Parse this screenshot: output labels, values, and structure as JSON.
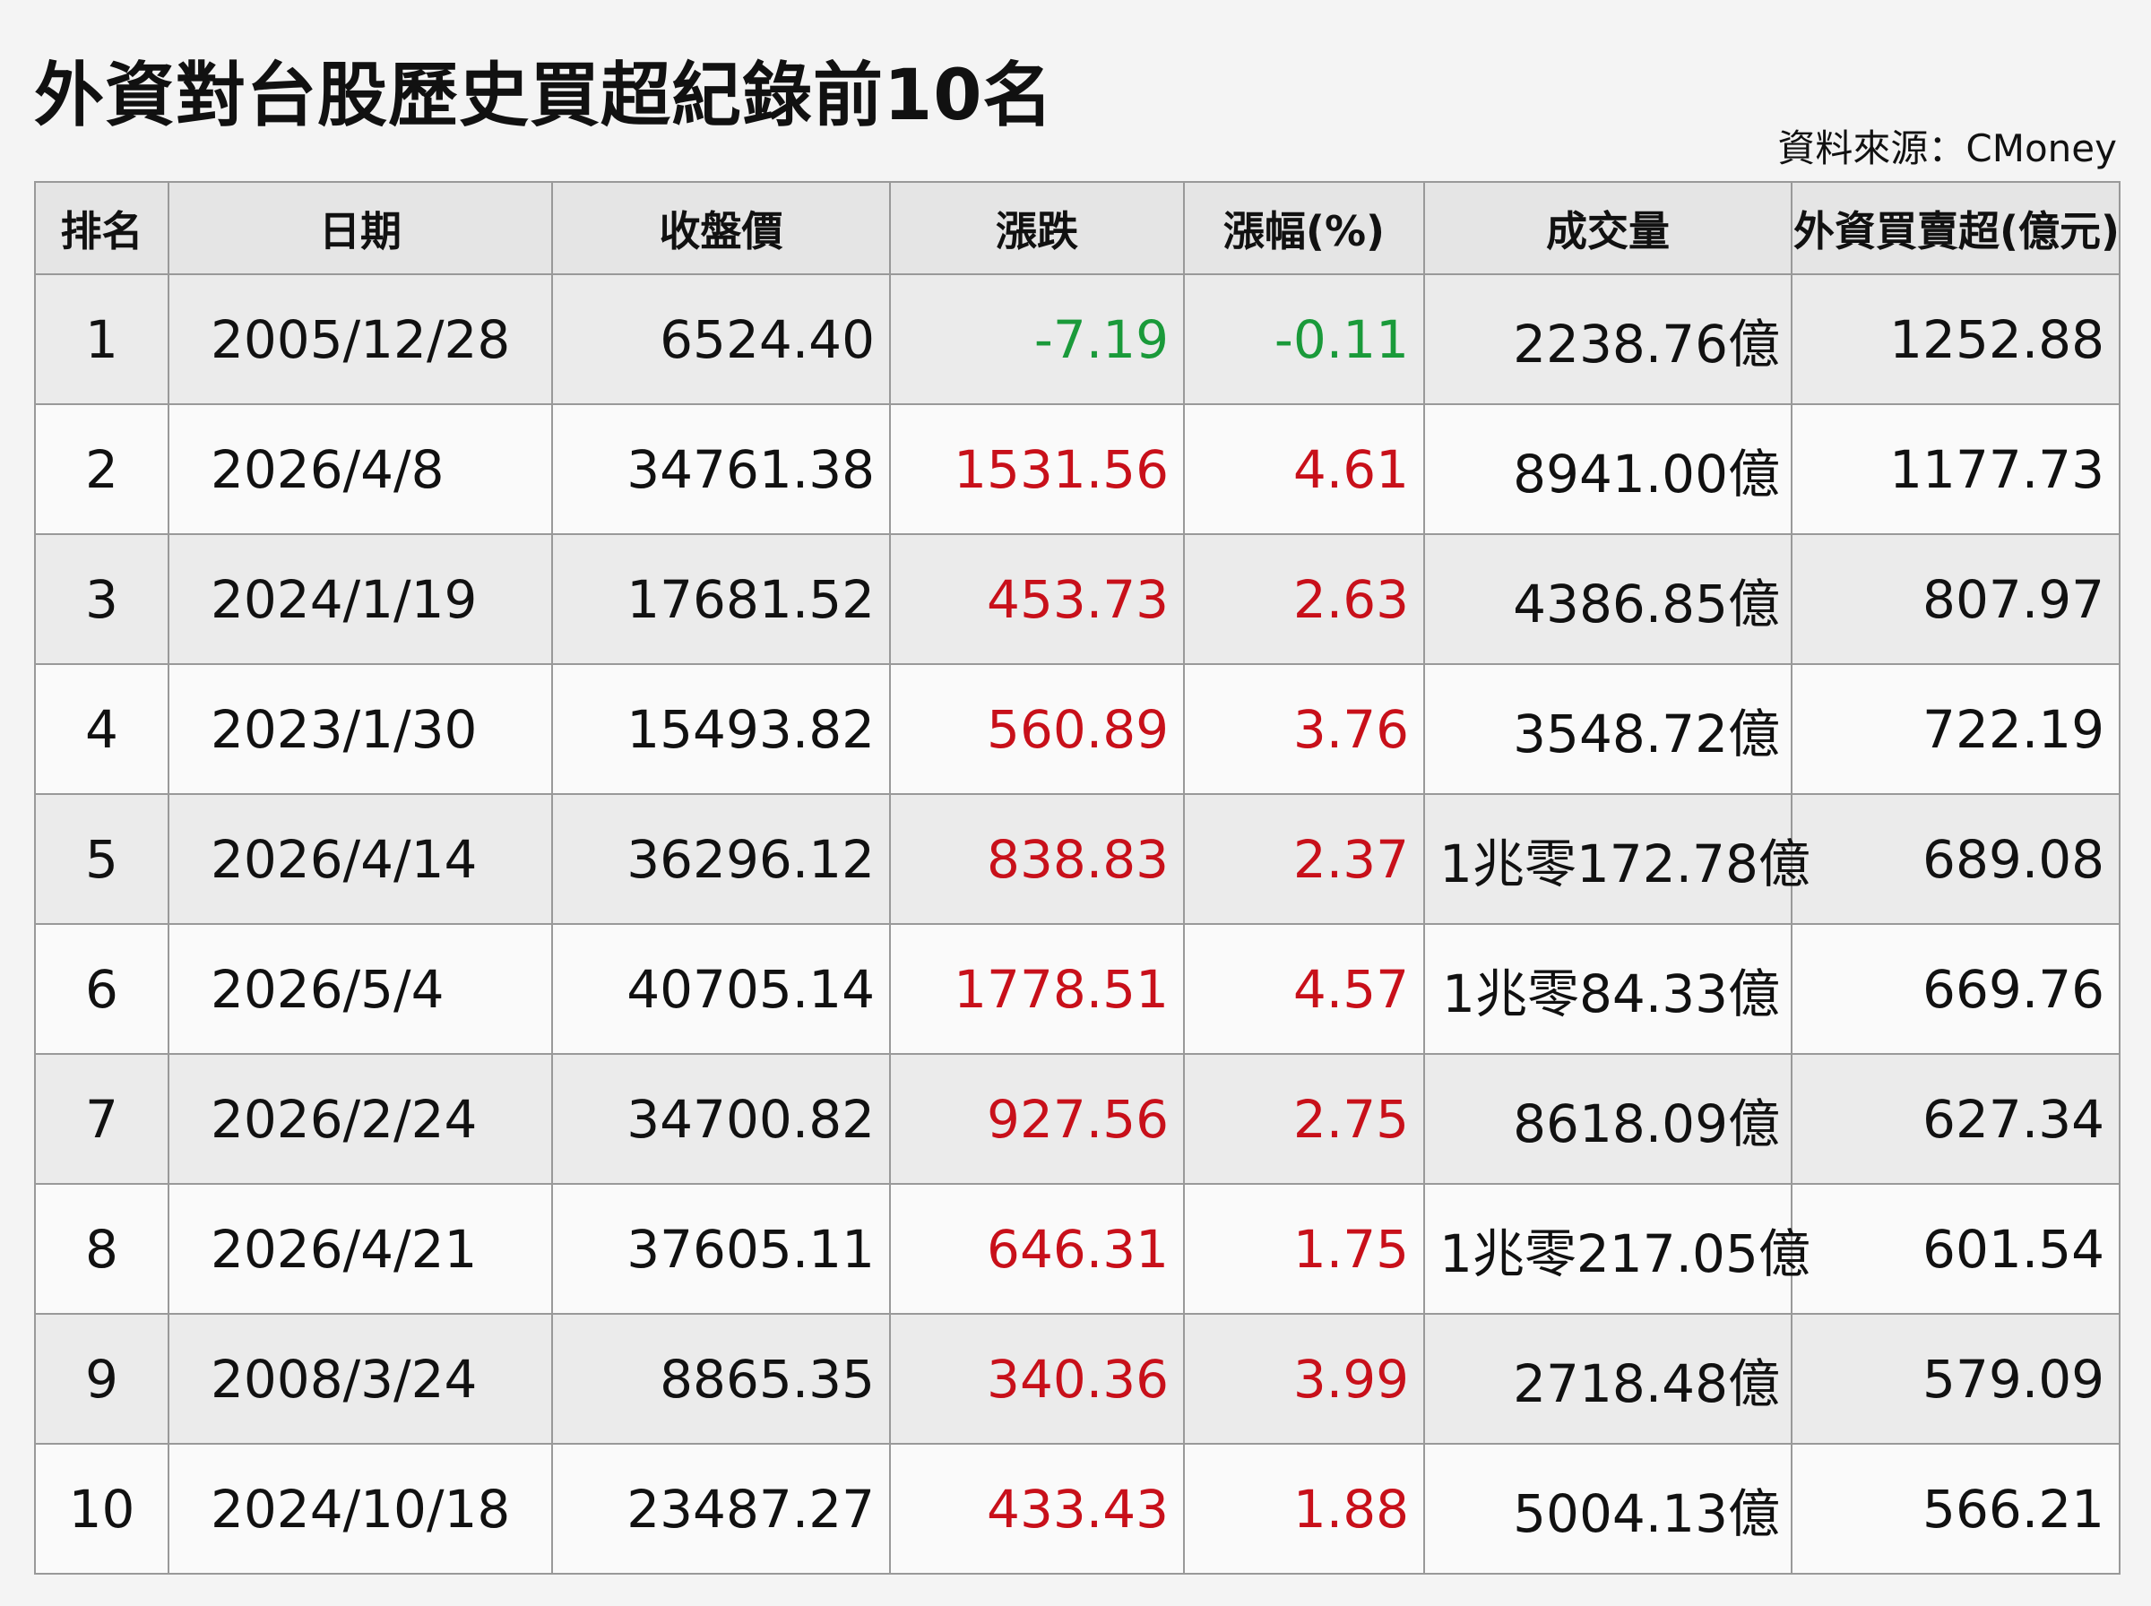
{
  "header": {
    "title": "外資對台股歷史買超紀錄前10名",
    "source": "資料來源：CMoney"
  },
  "table": {
    "columns": [
      "排名",
      "日期",
      "收盤價",
      "漲跌",
      "漲幅(%)",
      "成交量",
      "外資買賣超(億元)"
    ],
    "rows": [
      [
        "1",
        "2005/12/28",
        "6524.40",
        "-7.19",
        "-0.11",
        "2238.76億",
        "1252.88"
      ],
      [
        "2",
        "2026/4/8",
        "34761.38",
        "1531.56",
        "4.61",
        "8941.00億",
        "1177.73"
      ],
      [
        "3",
        "2024/1/19",
        "17681.52",
        "453.73",
        "2.63",
        "4386.85億",
        "807.97"
      ],
      [
        "4",
        "2023/1/30",
        "15493.82",
        "560.89",
        "3.76",
        "3548.72億",
        "722.19"
      ],
      [
        "5",
        "2026/4/14",
        "36296.12",
        "838.83",
        "2.37",
        "1兆零172.78億",
        "689.08"
      ],
      [
        "6",
        "2026/5/4",
        "40705.14",
        "1778.51",
        "4.57",
        "1兆零84.33億",
        "669.76"
      ],
      [
        "7",
        "2026/2/24",
        "34700.82",
        "927.56",
        "2.75",
        "8618.09億",
        "627.34"
      ],
      [
        "8",
        "2026/4/21",
        "37605.11",
        "646.31",
        "1.75",
        "1兆零217.05億",
        "601.54"
      ],
      [
        "9",
        "2008/3/24",
        "8865.35",
        "340.36",
        "3.99",
        "2718.48億",
        "579.09"
      ],
      [
        "10",
        "2024/10/18",
        "23487.27",
        "433.43",
        "1.88",
        "5004.13億",
        "566.21"
      ]
    ]
  }
}
